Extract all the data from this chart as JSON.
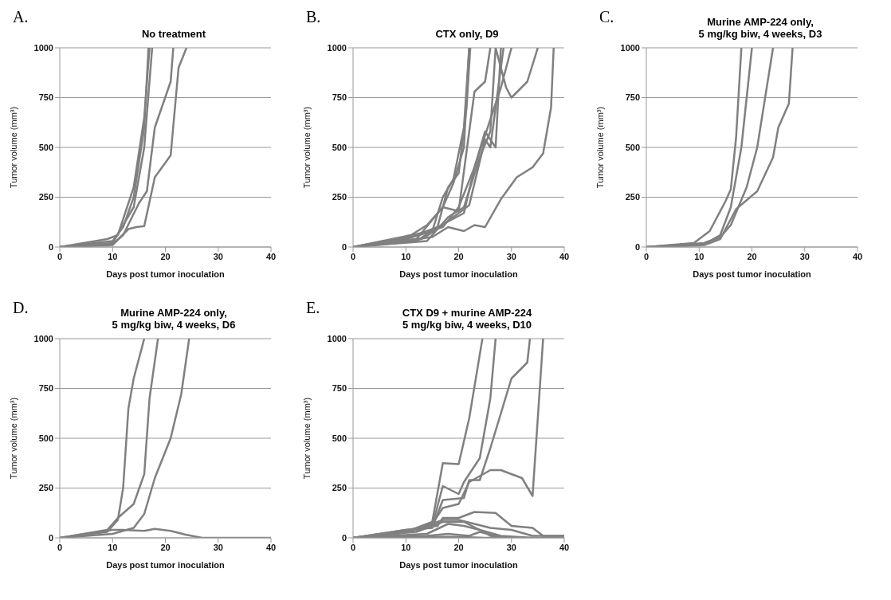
{
  "chart_data": [
    {
      "type": "line",
      "title": "No treatment",
      "annotations": [
        "A."
      ],
      "xlabel": "Days post tumor inoculation",
      "ylabel": "Tumor volume (mm³)",
      "xlim": [
        0,
        40
      ],
      "xticks": [
        0,
        10,
        20,
        30,
        40
      ],
      "ylim": [
        0,
        1000
      ],
      "yticks": [
        0,
        250,
        500,
        750,
        1000
      ],
      "grid": "y",
      "series": [
        {
          "color": "#808080",
          "x": [
            0,
            9,
            11,
            14,
            16,
            17
          ],
          "values": [
            0,
            40,
            60,
            300,
            650,
            1000
          ]
        },
        {
          "color": "#808080",
          "x": [
            0,
            10,
            12,
            14,
            16,
            16.8
          ],
          "values": [
            0,
            30,
            100,
            250,
            600,
            1000
          ]
        },
        {
          "color": "#808080",
          "x": [
            0,
            10,
            14,
            16,
            17.5
          ],
          "values": [
            0,
            20,
            200,
            500,
            1000
          ]
        },
        {
          "color": "#808080",
          "x": [
            0,
            10,
            12,
            15,
            16.5,
            18,
            21,
            21.5
          ],
          "values": [
            0,
            15,
            60,
            220,
            280,
            600,
            830,
            1000
          ]
        },
        {
          "color": "#808080",
          "x": [
            0,
            10,
            13,
            14.5,
            16,
            18,
            21,
            22.5,
            24
          ],
          "values": [
            0,
            10,
            90,
            100,
            105,
            350,
            460,
            900,
            1000
          ]
        }
      ]
    },
    {
      "type": "line",
      "title": "CTX only, D9",
      "annotations": [
        "B."
      ],
      "xlabel": "Days post tumor inoculation",
      "ylabel": "Tumor volume (mm³)",
      "xlim": [
        0,
        40
      ],
      "xticks": [
        0,
        10,
        20,
        30,
        40
      ],
      "ylim": [
        0,
        1000
      ],
      "yticks": [
        0,
        250,
        500,
        750,
        1000
      ],
      "grid": "y",
      "series": [
        {
          "color": "#808080",
          "x": [
            0,
            11,
            14,
            17,
            19,
            21,
            22
          ],
          "values": [
            0,
            60,
            110,
            200,
            320,
            500,
            1000
          ]
        },
        {
          "color": "#808080",
          "x": [
            0,
            11,
            16,
            18,
            20,
            21.5,
            22.2
          ],
          "values": [
            0,
            50,
            100,
            300,
            370,
            700,
            1000
          ]
        },
        {
          "color": "#808080",
          "x": [
            0,
            10,
            15,
            17,
            19,
            21,
            22
          ],
          "values": [
            0,
            40,
            80,
            250,
            340,
            600,
            1000
          ]
        },
        {
          "color": "#808080",
          "x": [
            0,
            12,
            17,
            20,
            23,
            25,
            26
          ],
          "values": [
            0,
            40,
            200,
            180,
            780,
            830,
            1000
          ]
        },
        {
          "color": "#808080",
          "x": [
            0,
            12,
            16,
            21,
            23,
            25,
            27,
            28
          ],
          "values": [
            0,
            30,
            100,
            170,
            400,
            580,
            500,
            1000
          ]
        },
        {
          "color": "#808080",
          "x": [
            0,
            13,
            16,
            22,
            25,
            26,
            27,
            28.5
          ],
          "values": [
            0,
            40,
            90,
            210,
            540,
            500,
            700,
            1000
          ]
        },
        {
          "color": "#808080",
          "x": [
            0,
            14,
            18,
            21,
            24,
            26,
            27,
            29,
            30,
            33,
            35
          ],
          "values": [
            0,
            30,
            150,
            200,
            450,
            580,
            1000,
            800,
            750,
            830,
            1000
          ]
        },
        {
          "color": "#808080",
          "x": [
            0,
            15,
            18,
            21,
            23,
            25,
            28,
            31,
            34,
            36,
            37.5,
            38
          ],
          "values": [
            0,
            50,
            100,
            80,
            110,
            100,
            240,
            350,
            400,
            470,
            700,
            1000
          ]
        },
        {
          "color": "#808080",
          "x": [
            0,
            10,
            17,
            20,
            23,
            25,
            28,
            30
          ],
          "values": [
            0,
            50,
            100,
            200,
            400,
            560,
            800,
            1000
          ]
        }
      ]
    },
    {
      "type": "line",
      "title": "Murine AMP-224 only,\n5 mg/kg biw, 4 weeks, D3",
      "annotations": [
        "C."
      ],
      "xlabel": "Days post tumor inoculation",
      "ylabel": "Tumor volume (mm³)",
      "xlim": [
        0,
        40
      ],
      "xticks": [
        0,
        10,
        20,
        30,
        40
      ],
      "ylim": [
        0,
        1000
      ],
      "yticks": [
        0,
        250,
        500,
        750,
        1000
      ],
      "grid": "y",
      "series": [
        {
          "color": "#808080",
          "x": [
            0,
            9,
            12,
            15,
            16,
            17,
            18
          ],
          "values": [
            0,
            20,
            80,
            230,
            290,
            550,
            1000
          ]
        },
        {
          "color": "#808080",
          "x": [
            0,
            10,
            12,
            14,
            16,
            18,
            20
          ],
          "values": [
            0,
            10,
            30,
            60,
            200,
            500,
            1000
          ]
        },
        {
          "color": "#808080",
          "x": [
            0,
            11,
            14,
            16,
            19,
            21,
            24
          ],
          "values": [
            0,
            20,
            50,
            110,
            300,
            500,
            1000
          ]
        },
        {
          "color": "#808080",
          "x": [
            0,
            11,
            14,
            17,
            21,
            24,
            25,
            27,
            27.7
          ],
          "values": [
            0,
            10,
            40,
            190,
            280,
            450,
            600,
            720,
            1000
          ]
        }
      ]
    },
    {
      "type": "line",
      "title": "Murine AMP-224 only,\n5 mg/kg biw, 4 weeks, D6",
      "annotations": [
        "D."
      ],
      "xlabel": "Days post tumor inoculation",
      "ylabel": "Tumor volume (mm³)",
      "xlim": [
        0,
        40
      ],
      "xticks": [
        0,
        10,
        20,
        30,
        40
      ],
      "ylim": [
        0,
        1000
      ],
      "yticks": [
        0,
        250,
        500,
        750,
        1000
      ],
      "grid": "y",
      "series": [
        {
          "color": "#808080",
          "x": [
            0,
            9,
            11,
            12,
            13,
            14,
            16
          ],
          "values": [
            0,
            30,
            90,
            250,
            650,
            800,
            1000
          ]
        },
        {
          "color": "#808080",
          "x": [
            0,
            9,
            11,
            14,
            16,
            17,
            18.6
          ],
          "values": [
            0,
            40,
            100,
            170,
            320,
            700,
            1000
          ]
        },
        {
          "color": "#808080",
          "x": [
            0,
            10,
            14,
            16,
            18,
            21,
            23,
            24.5
          ],
          "values": [
            0,
            20,
            50,
            120,
            300,
            500,
            720,
            1000
          ]
        },
        {
          "color": "#808080",
          "x": [
            0,
            10,
            12,
            16,
            18,
            21,
            24,
            27,
            40
          ],
          "values": [
            0,
            40,
            40,
            35,
            45,
            35,
            15,
            0,
            0
          ]
        }
      ]
    },
    {
      "type": "line",
      "title": "CTX D9 + murine AMP-224\n5 mg/kg biw, 4 weeks, D10",
      "annotations": [
        "E."
      ],
      "xlabel": "Days post tumor inoculation",
      "ylabel": "Tumor volume (mm³)",
      "xlim": [
        0,
        40
      ],
      "xticks": [
        0,
        10,
        20,
        30,
        40
      ],
      "ylim": [
        0,
        1000
      ],
      "yticks": [
        0,
        250,
        500,
        750,
        1000
      ],
      "grid": "y",
      "series": [
        {
          "color": "#808080",
          "x": [
            0,
            10,
            15,
            17,
            20,
            22,
            24.5
          ],
          "values": [
            0,
            30,
            80,
            375,
            370,
            600,
            1000
          ]
        },
        {
          "color": "#808080",
          "x": [
            0,
            10,
            15,
            17,
            20,
            21,
            24,
            26,
            27
          ],
          "values": [
            0,
            30,
            60,
            260,
            220,
            280,
            400,
            700,
            1000
          ]
        },
        {
          "color": "#808080",
          "x": [
            0,
            10,
            15,
            17,
            21,
            22,
            24,
            26,
            30,
            33,
            33.5
          ],
          "values": [
            0,
            40,
            50,
            190,
            200,
            290,
            290,
            450,
            800,
            880,
            1000
          ]
        },
        {
          "color": "#808080",
          "x": [
            0,
            10,
            15,
            17,
            20,
            22,
            26,
            28,
            32,
            34,
            36
          ],
          "values": [
            0,
            30,
            70,
            150,
            170,
            280,
            340,
            340,
            300,
            210,
            1000
          ]
        },
        {
          "color": "#808080",
          "x": [
            0,
            10,
            16,
            17,
            20,
            23,
            27,
            30,
            34,
            36,
            40
          ],
          "values": [
            0,
            40,
            60,
            100,
            100,
            130,
            125,
            60,
            50,
            10,
            10
          ]
        },
        {
          "color": "#808080",
          "x": [
            0,
            12,
            17,
            20,
            23,
            26,
            30,
            34,
            40
          ],
          "values": [
            0,
            40,
            90,
            90,
            70,
            50,
            40,
            10,
            10
          ]
        },
        {
          "color": "#808080",
          "x": [
            0,
            12,
            17,
            21,
            24,
            28,
            34
          ],
          "values": [
            0,
            30,
            80,
            80,
            40,
            10,
            0
          ]
        },
        {
          "color": "#808080",
          "x": [
            0,
            14,
            18,
            21,
            24,
            26,
            30
          ],
          "values": [
            0,
            20,
            70,
            60,
            40,
            10,
            0
          ]
        },
        {
          "color": "#808080",
          "x": [
            0,
            14,
            18,
            22,
            24,
            27,
            30
          ],
          "values": [
            0,
            10,
            20,
            10,
            30,
            10,
            0
          ]
        },
        {
          "color": "#808080",
          "x": [
            0,
            15,
            20,
            25,
            40
          ],
          "values": [
            0,
            5,
            5,
            0,
            0
          ]
        }
      ]
    }
  ]
}
